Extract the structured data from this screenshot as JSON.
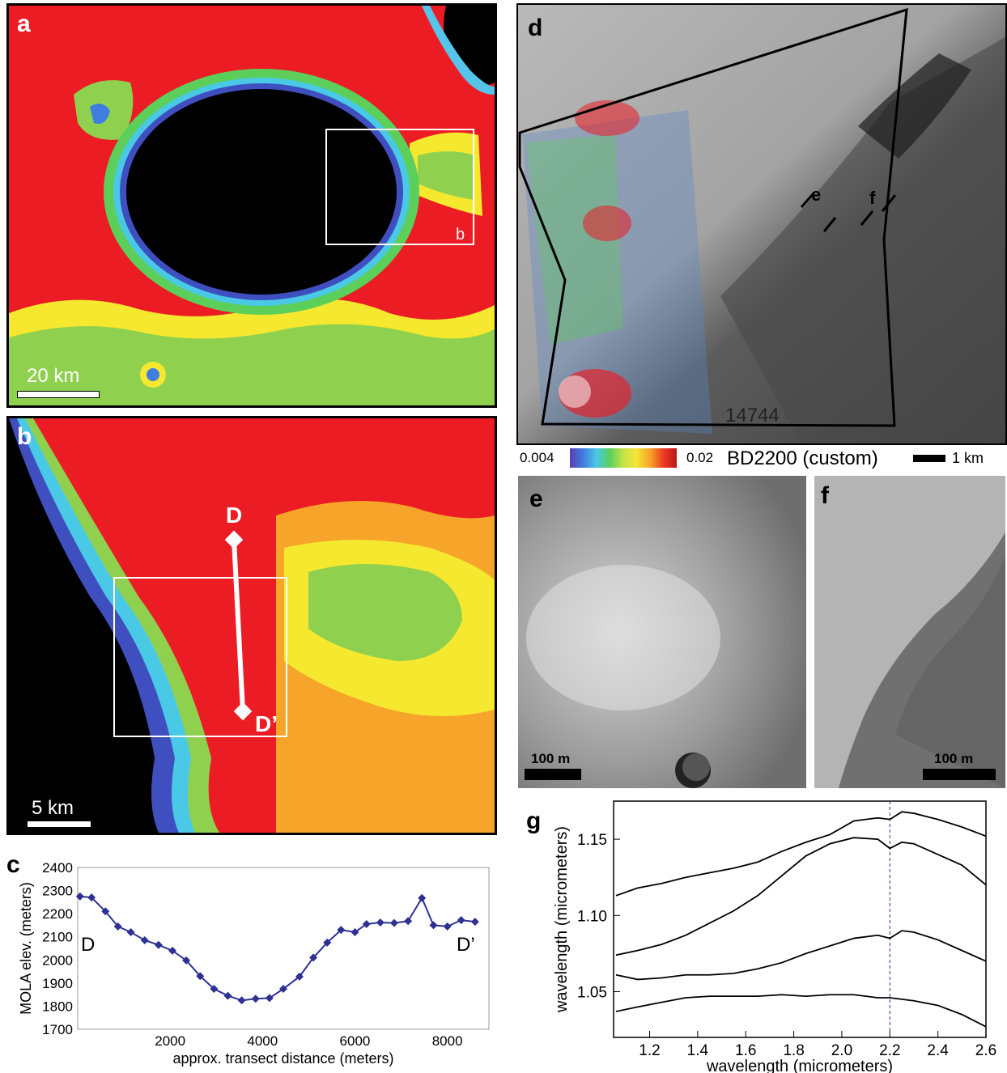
{
  "panels": {
    "a": {
      "letter": "a",
      "scale_label": "20 km",
      "inset_label": "b"
    },
    "b": {
      "letter": "b",
      "scale_label": "5 km",
      "transect_start": "D",
      "transect_end": "D’"
    },
    "d": {
      "letter": "d",
      "image_id": "14744",
      "arrow_labels": [
        "e",
        "f"
      ],
      "colorbar_min": "0.004",
      "colorbar_max": "0.02",
      "colorbar_title": "BD2200 (custom)",
      "scale_label": "1 km",
      "colorbar_colors": [
        "#5b3fb0",
        "#3f7ee0",
        "#49c9e6",
        "#5ccf5a",
        "#c7e34a",
        "#f4e634",
        "#f6a52a",
        "#ef3b24",
        "#b71818"
      ]
    },
    "e": {
      "letter": "e",
      "scale_label": "100 m"
    },
    "f": {
      "letter": "f",
      "scale_label": "100 m"
    },
    "c": {
      "letter": "c"
    },
    "g": {
      "letter": "g"
    }
  },
  "chart_data": [
    {
      "id": "c",
      "type": "line",
      "xlabel": "approx. transect distance (meters)",
      "ylabel": "MOLA elev. (meters)",
      "xlim": [
        0,
        8900
      ],
      "ylim": [
        1700,
        2400
      ],
      "x_ticks": [
        2000,
        4000,
        6000,
        8000
      ],
      "y_ticks": [
        1700,
        1800,
        1900,
        2000,
        2100,
        2200,
        2300,
        2400
      ],
      "grid": true,
      "start_label": "D",
      "end_label": "D’",
      "color": "#2e3192",
      "x": [
        50,
        300,
        600,
        870,
        1150,
        1450,
        1750,
        2050,
        2350,
        2650,
        2950,
        3250,
        3550,
        3850,
        4150,
        4450,
        4800,
        5100,
        5400,
        5700,
        6000,
        6250,
        6550,
        6850,
        7150,
        7450,
        7700,
        8000,
        8300,
        8600
      ],
      "y": [
        2275,
        2270,
        2210,
        2145,
        2120,
        2085,
        2065,
        2040,
        1998,
        1930,
        1875,
        1845,
        1825,
        1832,
        1835,
        1875,
        1928,
        2010,
        2075,
        2130,
        2120,
        2155,
        2162,
        2160,
        2168,
        2268,
        2150,
        2145,
        2172,
        2165
      ]
    },
    {
      "id": "g",
      "type": "line",
      "xlabel": "wavelength (micrometers)",
      "ylabel": "wavelength (micrometers)",
      "xlim": [
        1.05,
        2.6
      ],
      "ylim": [
        1.02,
        1.175
      ],
      "x_ticks": [
        "1.2",
        "1.4",
        "1.6",
        "1.8",
        "2.0",
        "2.2",
        "2.4",
        "2.6"
      ],
      "y_ticks": [
        "1.05",
        "1.10",
        "1.15"
      ],
      "reference_line_x": 2.2,
      "series": [
        {
          "x": [
            1.06,
            1.15,
            1.25,
            1.35,
            1.45,
            1.55,
            1.65,
            1.75,
            1.85,
            1.95,
            2.05,
            2.15,
            2.2,
            2.25,
            2.3,
            2.4,
            2.5,
            2.6
          ],
          "y": [
            1.113,
            1.118,
            1.121,
            1.125,
            1.128,
            1.131,
            1.135,
            1.142,
            1.148,
            1.153,
            1.162,
            1.164,
            1.163,
            1.168,
            1.167,
            1.163,
            1.158,
            1.152
          ]
        },
        {
          "x": [
            1.06,
            1.15,
            1.25,
            1.35,
            1.45,
            1.55,
            1.65,
            1.75,
            1.85,
            1.95,
            2.05,
            2.15,
            2.2,
            2.25,
            2.3,
            2.4,
            2.5,
            2.6
          ],
          "y": [
            1.074,
            1.077,
            1.081,
            1.087,
            1.095,
            1.103,
            1.113,
            1.126,
            1.139,
            1.147,
            1.151,
            1.15,
            1.144,
            1.148,
            1.147,
            1.14,
            1.133,
            1.12
          ]
        },
        {
          "x": [
            1.06,
            1.15,
            1.25,
            1.35,
            1.45,
            1.55,
            1.65,
            1.75,
            1.85,
            1.95,
            2.05,
            2.15,
            2.2,
            2.25,
            2.3,
            2.4,
            2.5,
            2.6
          ],
          "y": [
            1.061,
            1.058,
            1.059,
            1.061,
            1.061,
            1.062,
            1.065,
            1.069,
            1.075,
            1.08,
            1.085,
            1.087,
            1.085,
            1.09,
            1.089,
            1.084,
            1.077,
            1.07
          ]
        },
        {
          "x": [
            1.06,
            1.15,
            1.25,
            1.35,
            1.45,
            1.55,
            1.65,
            1.75,
            1.85,
            1.95,
            2.05,
            2.15,
            2.2,
            2.25,
            2.3,
            2.4,
            2.5,
            2.6
          ],
          "y": [
            1.037,
            1.04,
            1.043,
            1.046,
            1.047,
            1.047,
            1.047,
            1.048,
            1.047,
            1.048,
            1.048,
            1.046,
            1.046,
            1.045,
            1.044,
            1.041,
            1.035,
            1.027
          ]
        }
      ]
    }
  ]
}
